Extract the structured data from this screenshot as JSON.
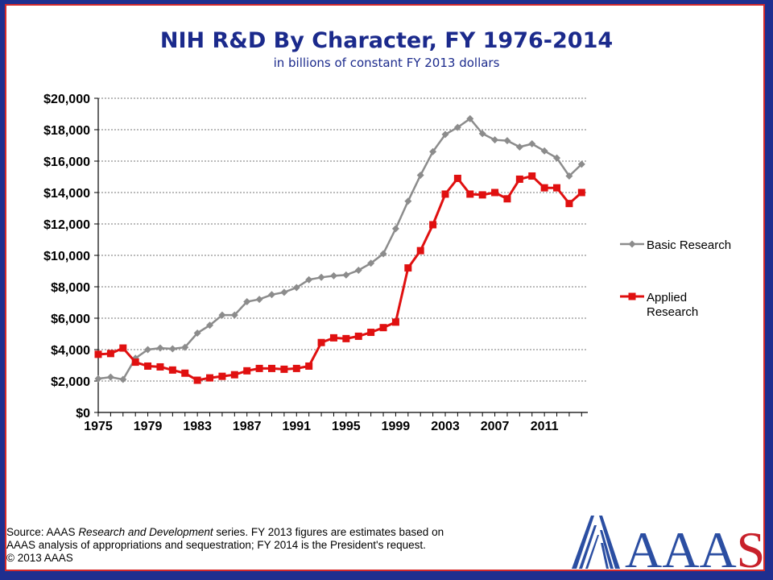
{
  "slide": {
    "title": "NIH R&D By Character, FY 1976-2014",
    "subtitle": "in billions of constant FY 2013 dollars",
    "source_line1_a": "Source: AAAS ",
    "source_line1_italic": "Research and Development",
    "source_line1_b": " series. FY 2013 figures are estimates based on",
    "source_line2": "AAAS analysis of appropriations and sequestration; FY 2014 is the President's request.",
    "source_line3": "© 2013 AAAS",
    "logo_text": "AAAS",
    "colors": {
      "frame": "#d42a2a",
      "background": "#1f2f8f",
      "title": "#1b2a8c"
    }
  },
  "chart_data": {
    "type": "line",
    "title": "NIH R&D By Character, FY 1976-2014",
    "subtitle": "in billions of constant FY 2013 dollars",
    "x": [
      1975,
      1976,
      1977,
      1978,
      1979,
      1980,
      1981,
      1982,
      1983,
      1984,
      1985,
      1986,
      1987,
      1988,
      1989,
      1990,
      1991,
      1992,
      1993,
      1994,
      1995,
      1996,
      1997,
      1998,
      1999,
      2000,
      2001,
      2002,
      2003,
      2004,
      2005,
      2006,
      2007,
      2008,
      2009,
      2010,
      2011,
      2012,
      2013,
      2014
    ],
    "x_ticks": [
      "1975",
      "1979",
      "1983",
      "1987",
      "1991",
      "1995",
      "1999",
      "2003",
      "2007",
      "2011"
    ],
    "y_ticks": [
      "$0",
      "$2,000",
      "$4,000",
      "$6,000",
      "$8,000",
      "$10,000",
      "$12,000",
      "$14,000",
      "$16,000",
      "$18,000",
      "$20,000"
    ],
    "ylim": [
      0,
      20000
    ],
    "grid": "horizontal dashed",
    "legend_position": "right",
    "series": [
      {
        "name": "Basic Research",
        "color": "#8c8c8c",
        "marker": "diamond",
        "values": [
          2150,
          2250,
          2100,
          3450,
          4000,
          4100,
          4050,
          4150,
          5050,
          5550,
          6200,
          6200,
          7050,
          7200,
          7500,
          7650,
          7950,
          8450,
          8600,
          8700,
          8750,
          9050,
          9500,
          10100,
          11700,
          13450,
          15100,
          16600,
          17700,
          18150,
          18700,
          17750,
          17350,
          17300,
          16900,
          17100,
          16650,
          16200,
          15050,
          15800
        ]
      },
      {
        "name": "Applied Research",
        "color": "#e01010",
        "marker": "square",
        "values": [
          3700,
          3750,
          4100,
          3200,
          2950,
          2900,
          2700,
          2500,
          2050,
          2200,
          2300,
          2400,
          2650,
          2800,
          2800,
          2750,
          2800,
          2950,
          4450,
          4750,
          4700,
          4850,
          5100,
          5400,
          5750,
          9200,
          10300,
          11950,
          13900,
          14900,
          13900,
          13850,
          14000,
          13600,
          14850,
          15050,
          14300,
          14300,
          13300,
          14000
        ]
      }
    ]
  }
}
